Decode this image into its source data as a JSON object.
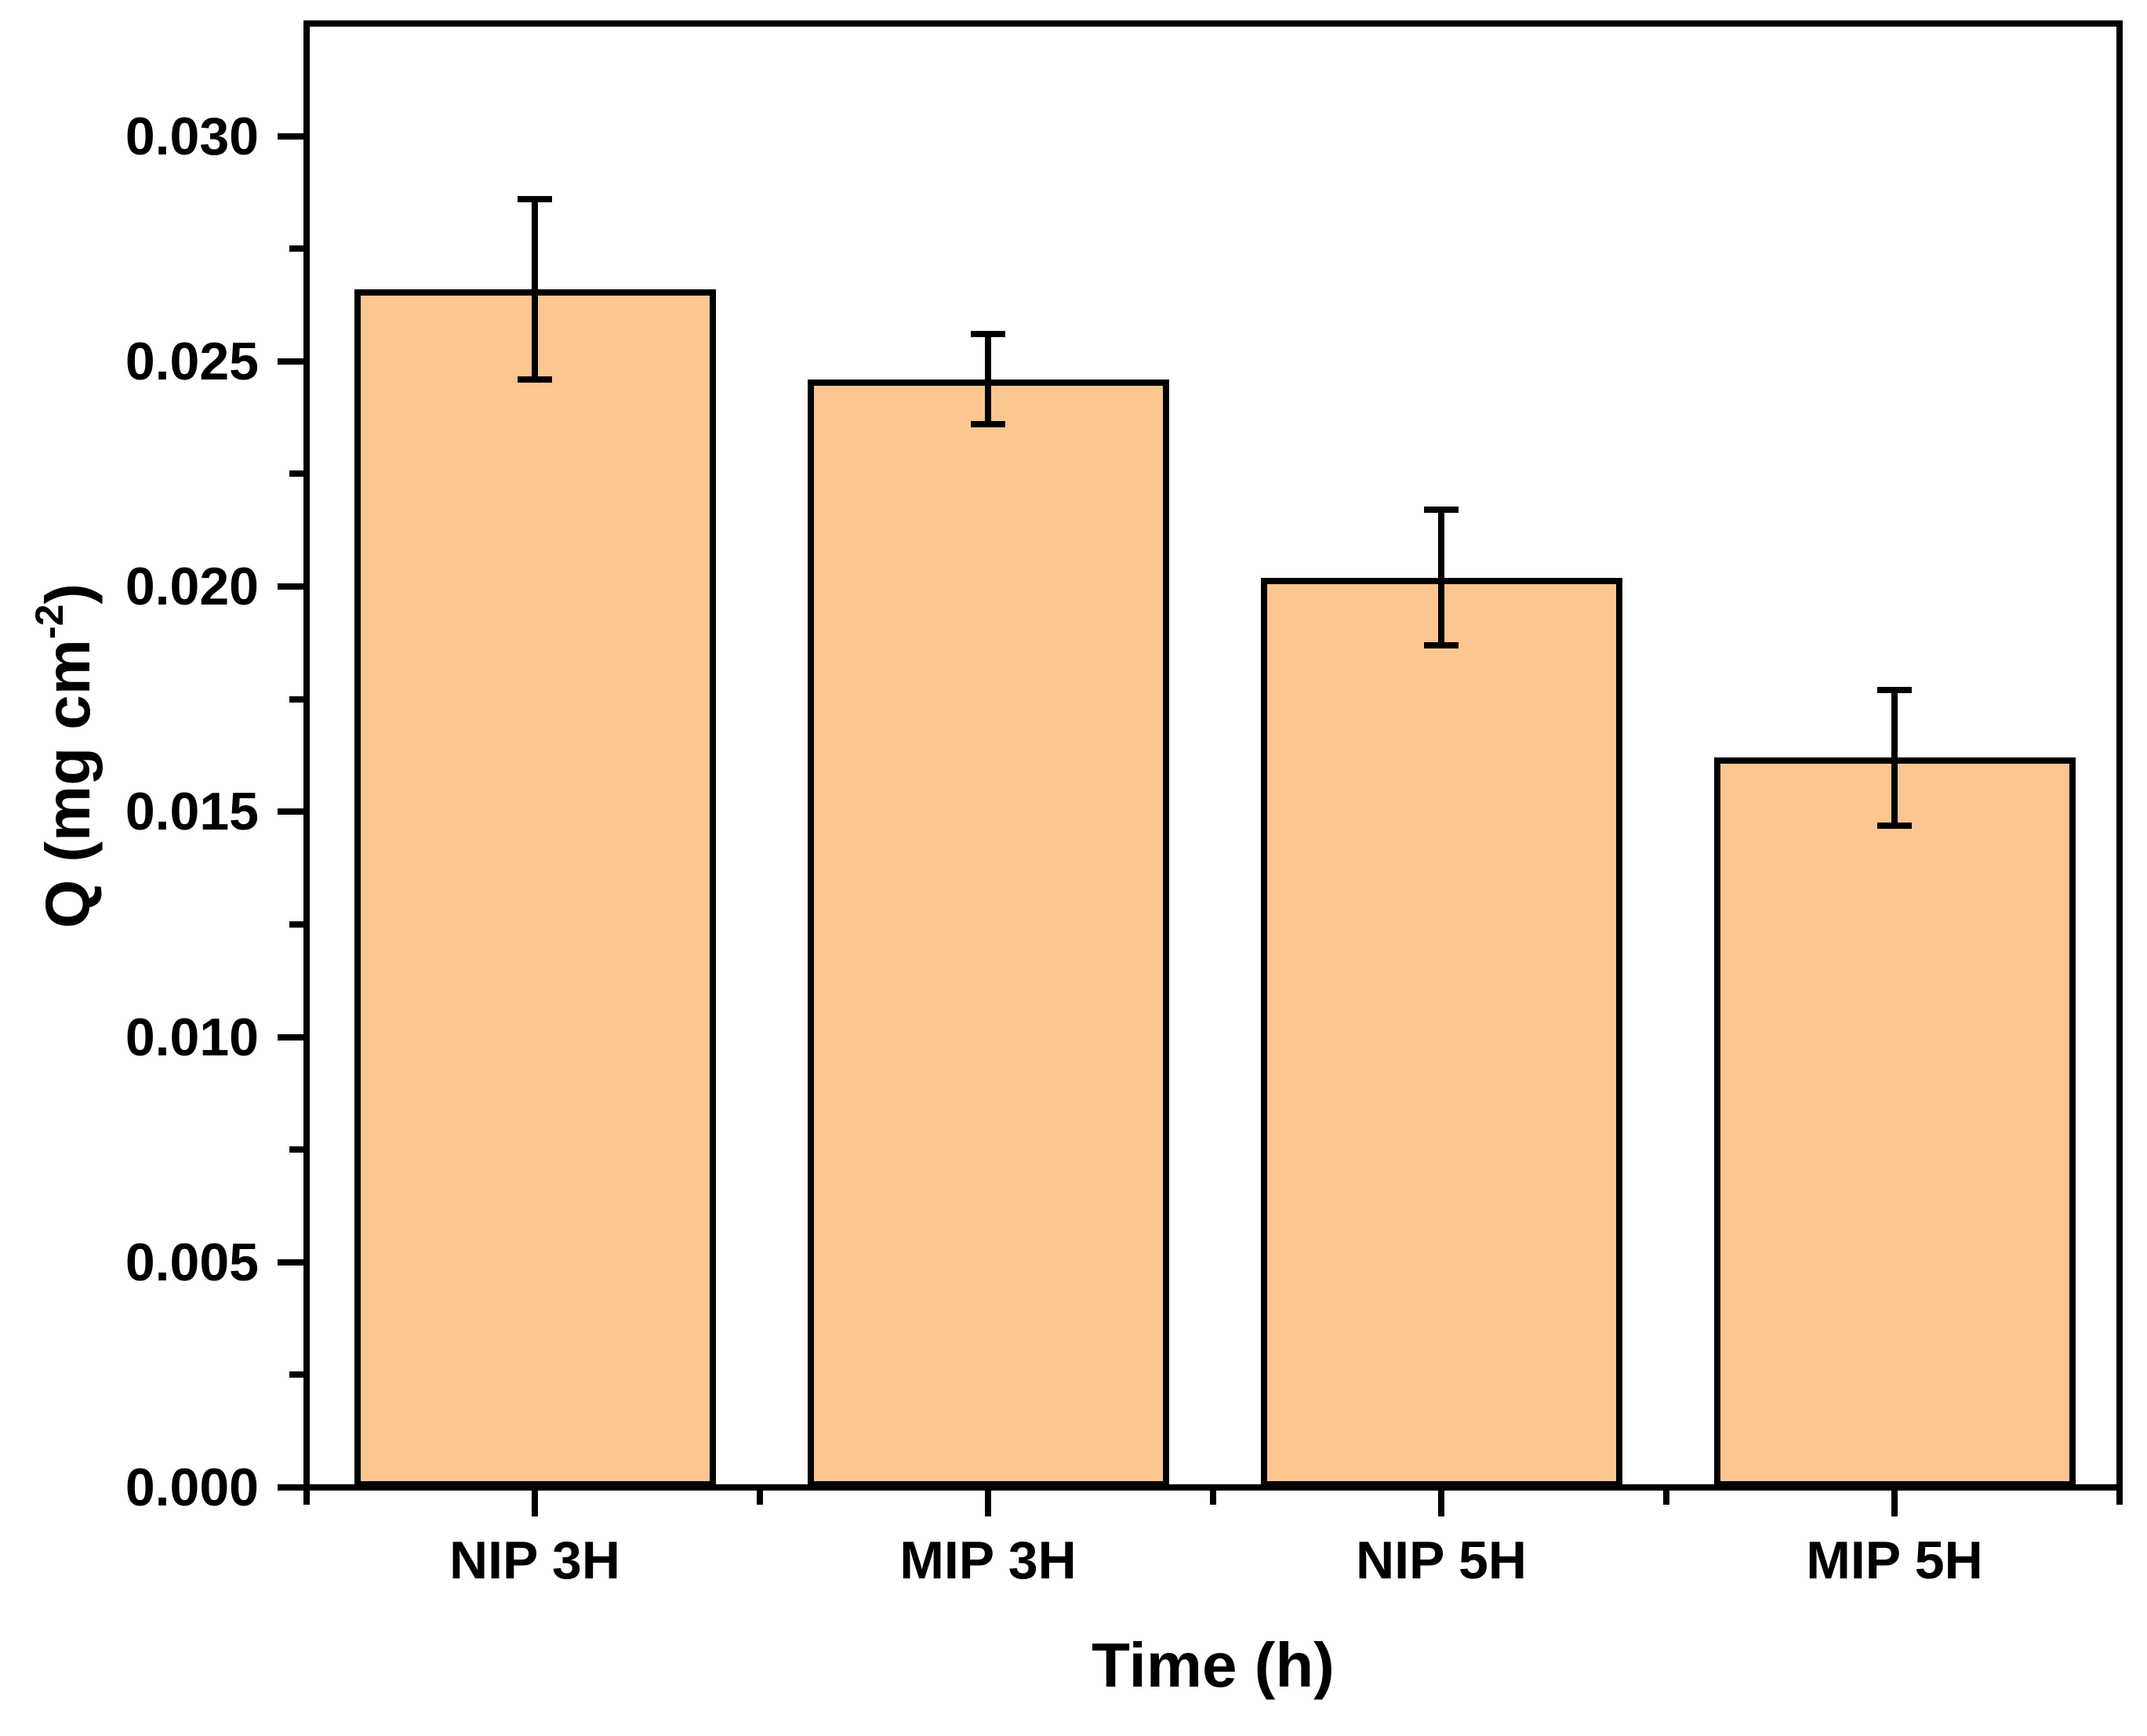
{
  "chart_data": {
    "type": "bar",
    "title": "",
    "categories": [
      "NIP 3H",
      "MIP 3H",
      "NIP 5H",
      "MIP 5H"
    ],
    "values": [
      0.0266,
      0.0246,
      0.0202,
      0.0162
    ],
    "errors_plus": [
      0.002,
      0.001,
      0.0015,
      0.0015
    ],
    "errors_minus": [
      0.002,
      0.001,
      0.0015,
      0.0015
    ],
    "xlabel": "Time (h)",
    "ylabel": "Q (mg cm-2)",
    "ylabel_parts": {
      "prefix": "Q (mg cm",
      "superscript": "-2",
      "suffix": ")"
    },
    "ylim": [
      0,
      0.0325
    ],
    "ytick_values": [
      0.0,
      0.005,
      0.01,
      0.015,
      0.02,
      0.025,
      0.03
    ],
    "ytick_labels": [
      "0.000",
      "0.005",
      "0.010",
      "0.015",
      "0.020",
      "0.025",
      "0.030"
    ],
    "yminor_tick_values": [
      0.0025,
      0.0075,
      0.0125,
      0.0175,
      0.0225,
      0.0275
    ],
    "grid": false,
    "legend": null,
    "colors": {
      "bar_fill": "#FBC690",
      "bar_edge": "#000000",
      "axis": "#000000",
      "background": "#FFFFFF",
      "error_bar": "#000000"
    }
  }
}
